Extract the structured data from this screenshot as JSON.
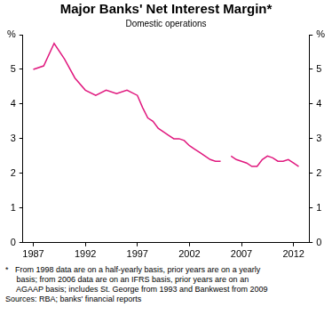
{
  "chart_data": {
    "type": "line",
    "title": "Major Banks' Net Interest Margin*",
    "subtitle": "Domestic operations",
    "x": [
      1987,
      1988,
      1989,
      1990,
      1991,
      1992,
      1993,
      1994,
      1995,
      1996,
      1997,
      1997.5,
      1998,
      1998.5,
      1999,
      1999.5,
      2000,
      2000.5,
      2001,
      2001.5,
      2002,
      2002.5,
      2003,
      2003.5,
      2004,
      2004.5,
      2005,
      2005.5,
      2006,
      2006.5,
      2007,
      2007.5,
      2008,
      2008.5,
      2009,
      2009.5,
      2010,
      2010.5,
      2011,
      2011.5,
      2012,
      2012.5
    ],
    "values": [
      5.0,
      5.1,
      5.75,
      5.3,
      4.75,
      4.4,
      4.25,
      4.4,
      4.3,
      4.4,
      4.25,
      3.9,
      3.6,
      3.5,
      3.3,
      3.2,
      3.1,
      3.0,
      3.0,
      2.95,
      2.8,
      2.7,
      2.6,
      2.5,
      2.4,
      2.35,
      2.35,
      null,
      2.5,
      2.4,
      2.35,
      2.3,
      2.2,
      2.2,
      2.4,
      2.5,
      2.45,
      2.35,
      2.35,
      2.4,
      2.3,
      2.2
    ],
    "color": "#e0187e",
    "xlim": [
      1986,
      2013.5
    ],
    "xticks": [
      1987,
      1992,
      1997,
      2002,
      2007,
      2012
    ],
    "ylim": [
      0,
      6
    ],
    "yticks": [
      0,
      1,
      2,
      3,
      4,
      5,
      {
        "value": 6,
        "label": "%"
      }
    ],
    "y2lim": [
      0,
      6
    ],
    "y2ticks": [
      0,
      1,
      2,
      3,
      4,
      5,
      {
        "value": 6,
        "label": "%"
      }
    ],
    "grid": false,
    "footnote": [
      "*   From 1998 data are on a half-yearly basis, prior years are on a yearly",
      "     basis; from 2006 data are on an IFRS basis, prior years are on an",
      "     AGAAP basis; includes St. George from 1993 and Bankwest from 2009"
    ],
    "source": "Sources: RBA; banks' financial reports"
  }
}
